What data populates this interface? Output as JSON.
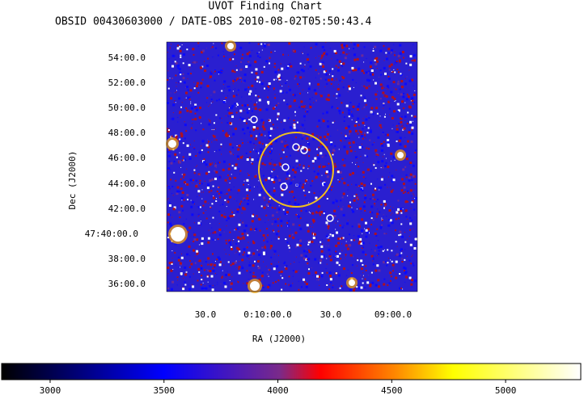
{
  "header": {
    "title": "UVOT Finding Chart",
    "subtitle": "OBSID 00430603000 / DATE-OBS 2010-08-02T05:50:43.4"
  },
  "image": {
    "x_label": "RA (J2000)",
    "y_label": "Dec (J2000)",
    "x_ticks": [
      "30.0",
      "0:10:00.0",
      "30.0",
      "09:00.0"
    ],
    "y_ticks": [
      "54:00.0",
      "52:00.0",
      "50:00.0",
      "48:00.0",
      "46:00.0",
      "44:00.0",
      "42:00.0",
      "47:40:00.0",
      "38:00.0",
      "36:00.0"
    ]
  },
  "colorbar": {
    "lim": [
      2787,
      5330
    ],
    "ticks": [
      3000,
      3500,
      4000,
      4500,
      5000
    ]
  }
}
